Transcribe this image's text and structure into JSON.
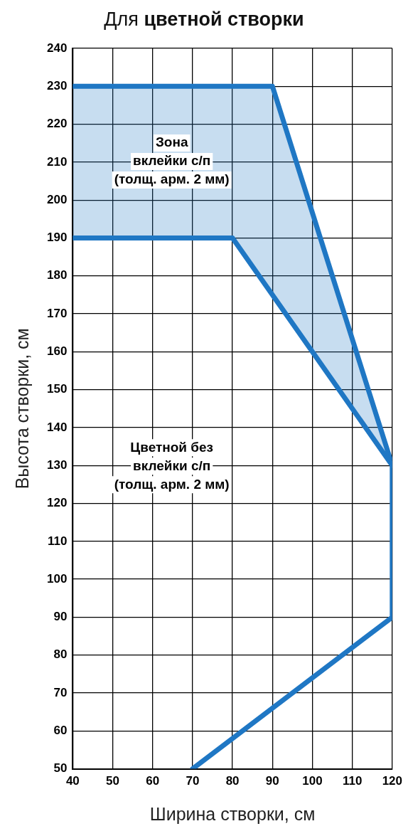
{
  "chart_data": {
    "type": "line",
    "title": "Для цветной створки",
    "xlabel": "Ширина створки, см",
    "ylabel": "Высота створки, см",
    "xlim": [
      40,
      120
    ],
    "xticks": [
      40,
      50,
      60,
      70,
      80,
      90,
      100,
      110,
      120
    ],
    "ylim": [
      50,
      240
    ],
    "yticks": [
      50,
      60,
      70,
      80,
      90,
      100,
      110,
      120,
      130,
      140,
      150,
      160,
      170,
      180,
      190,
      200,
      210,
      220,
      230,
      240
    ],
    "grid": true,
    "legend": false,
    "marker": "none",
    "line_style": "solid",
    "series": [
      {
        "color": "#1f77c4",
        "x": [
          40,
          80,
          90,
          120
        ],
        "values": [
          230,
          230,
          230,
          130
        ],
        "lower": [
          190,
          190,
          175,
          130
        ],
        "upper": [
          230,
          230,
          230,
          130
        ]
      },
      {
        "color": "#1f77c4",
        "x": [
          40,
          80,
          120,
          120,
          70
        ],
        "values": [
          190,
          190,
          130,
          90,
          50
        ]
      }
    ],
    "annotations": [
      "Зона\nвклейки с/п\n(толщ. арм. 2 мм)",
      "Цветной без\nвклейки с/п\n(толщ. арм. 2 мм)"
    ]
  }
}
